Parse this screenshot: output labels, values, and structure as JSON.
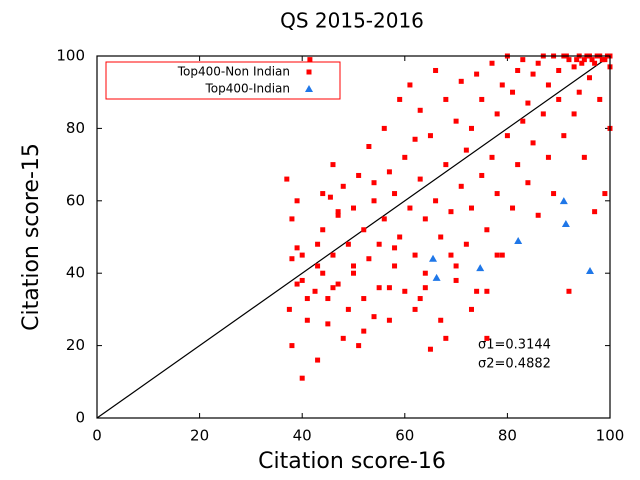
{
  "chart_data": {
    "type": "scatter",
    "title": "QS 2015-2016",
    "x_label": "Citation score-16",
    "y_label": "Citation score-15",
    "xlim": [
      0,
      100
    ],
    "ylim": [
      0,
      100
    ],
    "xticks": [
      0,
      20,
      40,
      60,
      80,
      100
    ],
    "yticks": [
      0,
      20,
      40,
      60,
      80,
      100
    ],
    "legend": "upper left",
    "annotations": [
      "σ1=0.3144",
      "σ2=0.4882"
    ],
    "series": [
      {
        "name": "Top400-Non Indian",
        "color": "#ff0000",
        "marker": "square",
        "x": [
          37,
          37.5,
          38,
          38,
          39,
          39,
          40,
          40,
          41,
          41,
          41.5,
          42,
          42,
          42.5,
          43,
          43,
          44,
          44,
          45,
          45,
          45.5,
          46,
          46,
          47,
          47,
          48,
          48,
          49,
          49,
          50,
          50,
          51,
          51,
          52,
          52,
          53,
          53,
          54,
          54,
          55,
          55,
          56,
          56,
          57,
          57,
          58,
          58,
          59,
          59,
          60,
          60,
          61,
          61,
          62,
          62,
          63,
          63,
          64,
          64,
          65,
          65,
          66,
          66,
          67,
          67,
          68,
          68,
          69,
          69,
          70,
          70,
          71,
          71,
          72,
          72,
          73,
          73,
          74,
          74,
          75,
          75,
          76,
          76,
          77,
          77,
          78,
          78,
          79,
          79,
          80,
          80,
          81,
          81,
          82,
          82,
          83,
          83,
          84,
          84,
          85,
          85,
          86,
          86,
          87,
          87,
          88,
          88,
          89,
          89,
          90,
          90,
          91,
          91,
          92,
          92,
          93,
          93,
          94,
          94,
          95,
          95,
          96,
          96,
          97,
          97,
          98,
          98,
          99,
          99,
          100,
          100,
          100,
          99.5,
          98.5,
          97.5,
          96.5,
          95.5,
          94.5,
          93.5,
          91.5,
          38,
          40,
          43,
          46,
          52,
          57,
          63,
          68,
          73,
          78,
          39,
          44,
          47,
          50,
          54,
          58,
          62,
          64,
          70,
          76
        ],
        "values": [
          66,
          30,
          44,
          20,
          37,
          60,
          11,
          45,
          33,
          27,
          99,
          96,
          89,
          35,
          42,
          16,
          62,
          52,
          33,
          26,
          61,
          70,
          45,
          56,
          37,
          64,
          22,
          48,
          30,
          58,
          40,
          67,
          20,
          52,
          33,
          75,
          44,
          60,
          28,
          48,
          36,
          80,
          55,
          68,
          27,
          42,
          62,
          88,
          50,
          35,
          72,
          58,
          92,
          45,
          30,
          66,
          85,
          40,
          55,
          19,
          78,
          96,
          60,
          27,
          50,
          88,
          70,
          45,
          57,
          82,
          38,
          64,
          93,
          48,
          74,
          80,
          58,
          95,
          35,
          67,
          88,
          52,
          22,
          72,
          98,
          62,
          84,
          45,
          92,
          78,
          100,
          58,
          90,
          70,
          96,
          82,
          99,
          65,
          87,
          95,
          76,
          98,
          56,
          84,
          100,
          92,
          72,
          100,
          62,
          96,
          88,
          100,
          78,
          99,
          35,
          97,
          84,
          100,
          90,
          99,
          72,
          100,
          94,
          98,
          57,
          100,
          88,
          99,
          62,
          80,
          100,
          97,
          100,
          99,
          100,
          99,
          100,
          98,
          99,
          100,
          55,
          38,
          48,
          36,
          24,
          36,
          33,
          22,
          30,
          45,
          47,
          40,
          57,
          42,
          65,
          47,
          77,
          36,
          42,
          35
        ]
      },
      {
        "name": "Top400-Indian",
        "color": "#1f77e8",
        "marker": "triangle",
        "x": [
          65.5,
          66.2,
          74.7,
          82.1,
          91.0,
          91.4,
          96.1
        ],
        "values": [
          44,
          38.7,
          41.4,
          48.9,
          59.9,
          53.6,
          40.6
        ]
      }
    ]
  }
}
